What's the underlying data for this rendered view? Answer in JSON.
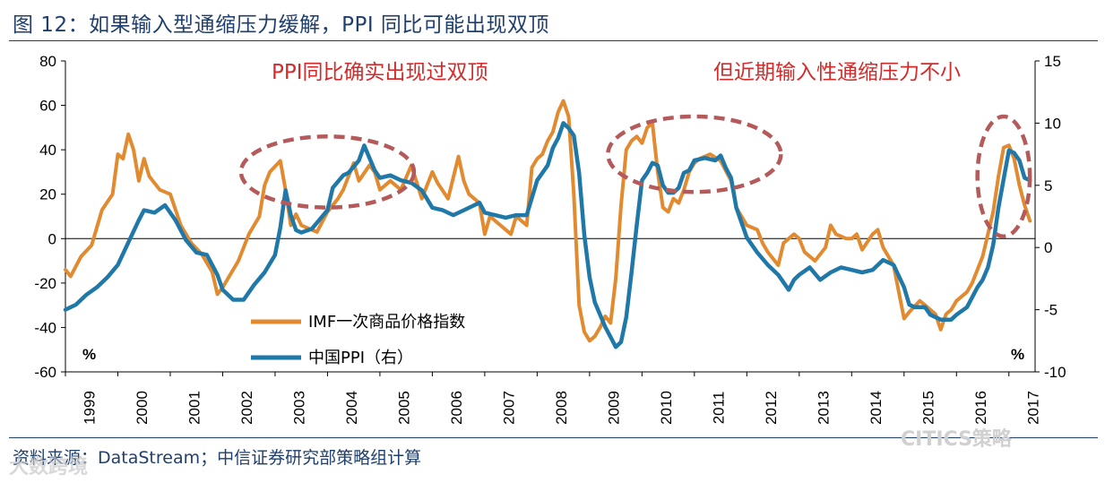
{
  "title": "图 12：如果输入型通缩压力缓解，PPI 同比可能出现双顶",
  "source": "资料来源：DataStream；中信证券研究部策略组计算",
  "watermark_left": "大数跨境",
  "watermark_right": "CITICS策略",
  "colors": {
    "imf": "#e28a2f",
    "ppi": "#1f78a8",
    "annot": "#d42a2a",
    "ellipse": "#b45a5a",
    "title": "#1f3f6e"
  },
  "chart_data": {
    "type": "line",
    "x_range": [
      1999.0,
      2017.5
    ],
    "x_ticks": [
      "1999",
      "2000",
      "2001",
      "2002",
      "2003",
      "2004",
      "2005",
      "2006",
      "2007",
      "2008",
      "2009",
      "2010",
      "2011",
      "2012",
      "2013",
      "2014",
      "2015",
      "2016",
      "2017"
    ],
    "y_left": {
      "range": [
        -60,
        80
      ],
      "ticks": [
        "-60",
        "-40",
        "-20",
        "0",
        "20",
        "40",
        "60",
        "80"
      ],
      "unit": "%"
    },
    "y_right": {
      "range": [
        -10,
        15
      ],
      "ticks": [
        "-10",
        "-5",
        "0",
        "5",
        "10",
        "15"
      ],
      "unit": "%"
    },
    "annotations": [
      "PPI同比确实出现过双顶",
      "但近期输入性通缩压力不小"
    ],
    "series": [
      {
        "name": "IMF一次商品价格指数",
        "axis": "left",
        "points": [
          [
            1999.0,
            -14
          ],
          [
            1999.1,
            -17
          ],
          [
            1999.3,
            -8
          ],
          [
            1999.5,
            -3
          ],
          [
            1999.7,
            13
          ],
          [
            1999.9,
            20
          ],
          [
            2000.0,
            38
          ],
          [
            2000.1,
            36
          ],
          [
            2000.2,
            47
          ],
          [
            2000.3,
            40
          ],
          [
            2000.4,
            26
          ],
          [
            2000.5,
            36
          ],
          [
            2000.6,
            28
          ],
          [
            2000.8,
            22
          ],
          [
            2001.0,
            20
          ],
          [
            2001.2,
            6
          ],
          [
            2001.4,
            -2
          ],
          [
            2001.6,
            -7
          ],
          [
            2001.8,
            -15
          ],
          [
            2001.9,
            -25
          ],
          [
            2002.0,
            -22
          ],
          [
            2002.1,
            -18
          ],
          [
            2002.3,
            -10
          ],
          [
            2002.5,
            2
          ],
          [
            2002.7,
            10
          ],
          [
            2002.8,
            24
          ],
          [
            2002.9,
            30
          ],
          [
            2003.1,
            35
          ],
          [
            2003.2,
            22
          ],
          [
            2003.3,
            6
          ],
          [
            2003.4,
            11
          ],
          [
            2003.5,
            6
          ],
          [
            2003.6,
            5
          ],
          [
            2003.8,
            3
          ],
          [
            2004.0,
            12
          ],
          [
            2004.2,
            18
          ],
          [
            2004.3,
            22
          ],
          [
            2004.5,
            34
          ],
          [
            2004.6,
            26
          ],
          [
            2004.8,
            33
          ],
          [
            2004.9,
            30
          ],
          [
            2005.0,
            22
          ],
          [
            2005.2,
            26
          ],
          [
            2005.4,
            22
          ],
          [
            2005.6,
            33
          ],
          [
            2005.8,
            18
          ],
          [
            2006.0,
            30
          ],
          [
            2006.1,
            25
          ],
          [
            2006.3,
            18
          ],
          [
            2006.5,
            37
          ],
          [
            2006.6,
            26
          ],
          [
            2006.7,
            20
          ],
          [
            2006.9,
            16
          ],
          [
            2007.0,
            2
          ],
          [
            2007.1,
            10
          ],
          [
            2007.3,
            6
          ],
          [
            2007.5,
            2
          ],
          [
            2007.6,
            10
          ],
          [
            2007.8,
            6
          ],
          [
            2007.9,
            32
          ],
          [
            2008.0,
            36
          ],
          [
            2008.1,
            38
          ],
          [
            2008.2,
            44
          ],
          [
            2008.3,
            48
          ],
          [
            2008.4,
            57
          ],
          [
            2008.5,
            62
          ],
          [
            2008.6,
            55
          ],
          [
            2008.7,
            20
          ],
          [
            2008.8,
            -30
          ],
          [
            2008.9,
            -42
          ],
          [
            2009.0,
            -46
          ],
          [
            2009.1,
            -44
          ],
          [
            2009.2,
            -40
          ],
          [
            2009.3,
            -35
          ],
          [
            2009.4,
            -38
          ],
          [
            2009.5,
            -18
          ],
          [
            2009.6,
            15
          ],
          [
            2009.7,
            40
          ],
          [
            2009.8,
            44
          ],
          [
            2009.9,
            46
          ],
          [
            2010.0,
            43
          ],
          [
            2010.1,
            50
          ],
          [
            2010.2,
            52
          ],
          [
            2010.3,
            30
          ],
          [
            2010.4,
            14
          ],
          [
            2010.5,
            12
          ],
          [
            2010.6,
            18
          ],
          [
            2010.7,
            16
          ],
          [
            2010.8,
            22
          ],
          [
            2010.9,
            30
          ],
          [
            2011.0,
            34
          ],
          [
            2011.1,
            36
          ],
          [
            2011.3,
            38
          ],
          [
            2011.5,
            35
          ],
          [
            2011.7,
            26
          ],
          [
            2011.8,
            14
          ],
          [
            2012.0,
            6
          ],
          [
            2012.2,
            4
          ],
          [
            2012.3,
            -2
          ],
          [
            2012.4,
            -6
          ],
          [
            2012.6,
            -12
          ],
          [
            2012.7,
            -2
          ],
          [
            2012.9,
            2
          ],
          [
            2013.0,
            0
          ],
          [
            2013.1,
            -6
          ],
          [
            2013.3,
            -10
          ],
          [
            2013.5,
            -4
          ],
          [
            2013.6,
            6
          ],
          [
            2013.7,
            2
          ],
          [
            2013.9,
            0
          ],
          [
            2014.0,
            0
          ],
          [
            2014.1,
            2
          ],
          [
            2014.2,
            -5
          ],
          [
            2014.4,
            2
          ],
          [
            2014.5,
            4
          ],
          [
            2014.6,
            -4
          ],
          [
            2014.8,
            -12
          ],
          [
            2014.9,
            -24
          ],
          [
            2015.0,
            -36
          ],
          [
            2015.1,
            -33
          ],
          [
            2015.3,
            -28
          ],
          [
            2015.4,
            -30
          ],
          [
            2015.6,
            -34
          ],
          [
            2015.7,
            -41
          ],
          [
            2015.8,
            -34
          ],
          [
            2015.9,
            -32
          ],
          [
            2016.0,
            -28
          ],
          [
            2016.2,
            -24
          ],
          [
            2016.3,
            -20
          ],
          [
            2016.5,
            -8
          ],
          [
            2016.7,
            12
          ],
          [
            2016.8,
            28
          ],
          [
            2016.9,
            41
          ],
          [
            2017.0,
            42
          ],
          [
            2017.1,
            36
          ],
          [
            2017.2,
            24
          ],
          [
            2017.3,
            15
          ],
          [
            2017.4,
            8
          ]
        ]
      },
      {
        "name": "中国PPI（右）",
        "axis": "right",
        "points": [
          [
            1999.0,
            -5.0
          ],
          [
            1999.2,
            -4.6
          ],
          [
            1999.4,
            -3.8
          ],
          [
            1999.6,
            -3.2
          ],
          [
            1999.8,
            -2.4
          ],
          [
            2000.0,
            -1.4
          ],
          [
            2000.2,
            0.4
          ],
          [
            2000.4,
            2.2
          ],
          [
            2000.5,
            3.0
          ],
          [
            2000.7,
            2.8
          ],
          [
            2000.9,
            3.4
          ],
          [
            2001.1,
            2.2
          ],
          [
            2001.3,
            0.6
          ],
          [
            2001.5,
            -0.4
          ],
          [
            2001.7,
            -0.6
          ],
          [
            2001.9,
            -2.2
          ],
          [
            2002.0,
            -3.4
          ],
          [
            2002.2,
            -4.2
          ],
          [
            2002.4,
            -4.2
          ],
          [
            2002.6,
            -3.0
          ],
          [
            2002.8,
            -2.0
          ],
          [
            2003.0,
            -0.6
          ],
          [
            2003.1,
            1.6
          ],
          [
            2003.2,
            4.6
          ],
          [
            2003.3,
            2.6
          ],
          [
            2003.4,
            1.4
          ],
          [
            2003.5,
            1.2
          ],
          [
            2003.7,
            1.5
          ],
          [
            2004.0,
            3.0
          ],
          [
            2004.1,
            4.8
          ],
          [
            2004.3,
            5.8
          ],
          [
            2004.4,
            6.0
          ],
          [
            2004.6,
            7.0
          ],
          [
            2004.7,
            8.2
          ],
          [
            2004.9,
            6.2
          ],
          [
            2005.0,
            5.6
          ],
          [
            2005.2,
            5.8
          ],
          [
            2005.4,
            5.4
          ],
          [
            2005.6,
            5.2
          ],
          [
            2005.8,
            4.6
          ],
          [
            2006.0,
            3.2
          ],
          [
            2006.2,
            3.0
          ],
          [
            2006.4,
            2.6
          ],
          [
            2006.6,
            3.0
          ],
          [
            2006.8,
            3.4
          ],
          [
            2006.9,
            3.6
          ],
          [
            2007.0,
            2.8
          ],
          [
            2007.2,
            2.6
          ],
          [
            2007.4,
            2.4
          ],
          [
            2007.6,
            2.6
          ],
          [
            2007.8,
            2.6
          ],
          [
            2008.0,
            5.4
          ],
          [
            2008.2,
            6.6
          ],
          [
            2008.3,
            8.0
          ],
          [
            2008.4,
            8.8
          ],
          [
            2008.5,
            10.0
          ],
          [
            2008.6,
            9.6
          ],
          [
            2008.7,
            9.0
          ],
          [
            2008.8,
            6.0
          ],
          [
            2008.9,
            1.0
          ],
          [
            2009.0,
            -2.4
          ],
          [
            2009.1,
            -4.4
          ],
          [
            2009.2,
            -5.4
          ],
          [
            2009.3,
            -6.4
          ],
          [
            2009.4,
            -7.2
          ],
          [
            2009.5,
            -8.0
          ],
          [
            2009.6,
            -7.6
          ],
          [
            2009.7,
            -5.6
          ],
          [
            2009.8,
            -2.0
          ],
          [
            2009.9,
            1.8
          ],
          [
            2010.0,
            5.4
          ],
          [
            2010.1,
            6.0
          ],
          [
            2010.2,
            6.8
          ],
          [
            2010.3,
            6.6
          ],
          [
            2010.4,
            5.0
          ],
          [
            2010.5,
            4.4
          ],
          [
            2010.6,
            4.4
          ],
          [
            2010.7,
            4.8
          ],
          [
            2010.8,
            6.0
          ],
          [
            2010.9,
            6.2
          ],
          [
            2011.0,
            7.0
          ],
          [
            2011.2,
            7.2
          ],
          [
            2011.4,
            7.0
          ],
          [
            2011.5,
            7.4
          ],
          [
            2011.6,
            6.4
          ],
          [
            2011.7,
            5.6
          ],
          [
            2011.8,
            3.2
          ],
          [
            2012.0,
            0.8
          ],
          [
            2012.2,
            -0.4
          ],
          [
            2012.4,
            -1.4
          ],
          [
            2012.6,
            -2.2
          ],
          [
            2012.8,
            -3.4
          ],
          [
            2012.9,
            -2.6
          ],
          [
            2013.0,
            -2.2
          ],
          [
            2013.2,
            -1.6
          ],
          [
            2013.4,
            -2.6
          ],
          [
            2013.6,
            -2.0
          ],
          [
            2013.8,
            -1.6
          ],
          [
            2014.0,
            -1.8
          ],
          [
            2014.2,
            -2.0
          ],
          [
            2014.4,
            -1.8
          ],
          [
            2014.6,
            -1.0
          ],
          [
            2014.8,
            -1.4
          ],
          [
            2015.0,
            -3.2
          ],
          [
            2015.1,
            -4.6
          ],
          [
            2015.2,
            -4.8
          ],
          [
            2015.4,
            -4.8
          ],
          [
            2015.5,
            -5.4
          ],
          [
            2015.7,
            -5.8
          ],
          [
            2015.9,
            -5.8
          ],
          [
            2016.0,
            -5.4
          ],
          [
            2016.2,
            -4.8
          ],
          [
            2016.4,
            -3.2
          ],
          [
            2016.5,
            -2.6
          ],
          [
            2016.6,
            -1.6
          ],
          [
            2016.7,
            0.2
          ],
          [
            2016.8,
            3.2
          ],
          [
            2016.9,
            5.5
          ],
          [
            2017.0,
            7.8
          ],
          [
            2017.1,
            7.6
          ],
          [
            2017.2,
            7.0
          ],
          [
            2017.3,
            5.6
          ],
          [
            2017.4,
            5.4
          ]
        ]
      }
    ]
  }
}
